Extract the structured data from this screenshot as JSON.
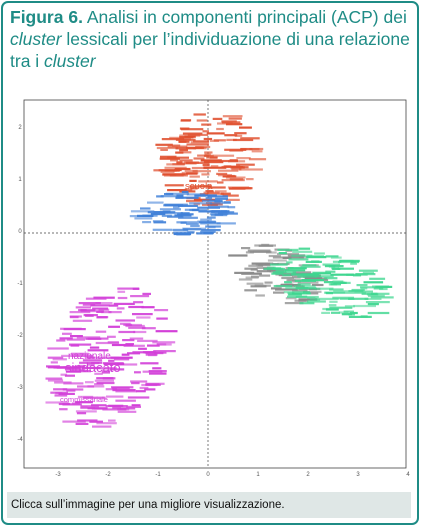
{
  "figure": {
    "label": "Figura 6.",
    "title_part1": " Analisi in componenti principali (ACP) dei ",
    "title_em1": "cluster",
    "title_part2": " lessicali per l’individuazione di una relazione tra i ",
    "title_em2": "cluster",
    "caption": "Clicca sull’immagine per una migliore visualizzazione."
  },
  "plot": {
    "highlight_words": {
      "red": "scuola",
      "magenta_1": "nazionale",
      "magenta_2": "sindacato",
      "magenta_3": "commissariale"
    },
    "x_ticks": [
      "-3",
      "-2",
      "-1",
      "0",
      "1",
      "2",
      "3",
      "4"
    ],
    "y_ticks": [
      "2",
      "1",
      "0",
      "-1",
      "-2",
      "-3",
      "-4"
    ],
    "colors": {
      "red": "#e0502f",
      "blue": "#3f80d8",
      "grey": "#8a8a8a",
      "green": "#3ed68f",
      "magenta": "#d23fd8",
      "axis": "#555555"
    }
  }
}
